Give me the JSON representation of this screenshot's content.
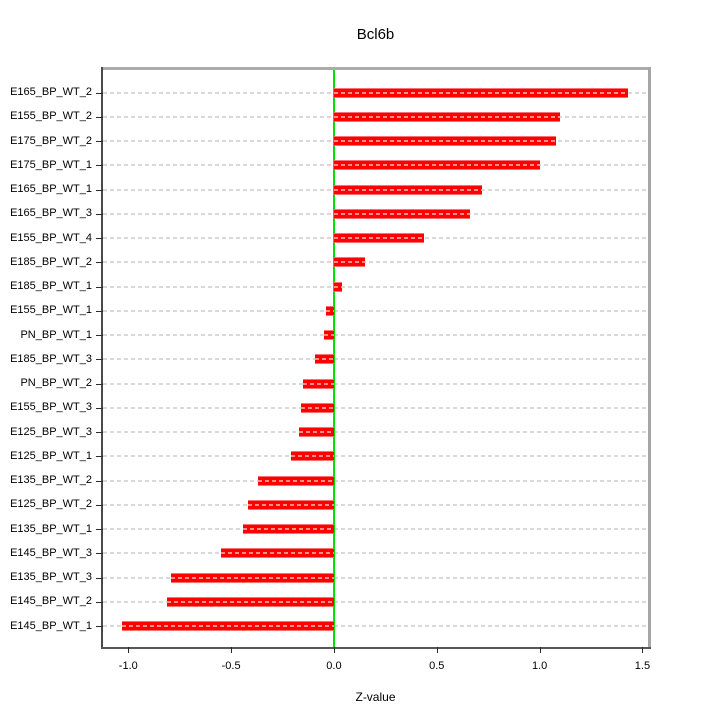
{
  "chart": {
    "title": "Bcl6b",
    "xlabel": "Z-value"
  },
  "chart_data": {
    "type": "bar",
    "orientation": "horizontal",
    "title": "Bcl6b",
    "xlabel": "Z-value",
    "ylabel": "",
    "categories": [
      "E165_BP_WT_2",
      "E155_BP_WT_2",
      "E175_BP_WT_2",
      "E175_BP_WT_1",
      "E165_BP_WT_1",
      "E165_BP_WT_3",
      "E155_BP_WT_4",
      "E185_BP_WT_2",
      "E185_BP_WT_1",
      "E155_BP_WT_1",
      "PN_BP_WT_1",
      "E185_BP_WT_3",
      "PN_BP_WT_2",
      "E155_BP_WT_3",
      "E125_BP_WT_3",
      "E125_BP_WT_1",
      "E135_BP_WT_2",
      "E125_BP_WT_2",
      "E135_BP_WT_1",
      "E145_BP_WT_3",
      "E135_BP_WT_3",
      "E145_BP_WT_2",
      "E145_BP_WT_1"
    ],
    "values": [
      1.43,
      1.1,
      1.08,
      1.0,
      0.72,
      0.66,
      0.44,
      0.15,
      0.04,
      -0.04,
      -0.05,
      -0.09,
      -0.15,
      -0.16,
      -0.17,
      -0.21,
      -0.37,
      -0.42,
      -0.44,
      -0.55,
      -0.79,
      -0.81,
      -1.03
    ],
    "xlim": [
      -1.123,
      1.527
    ],
    "xticks": [
      -1.0,
      -0.5,
      0.0,
      0.5,
      1.0,
      1.5
    ],
    "xtick_labels": [
      "-1.0",
      "-0.5",
      "0.0",
      "0.5",
      "1.0",
      "1.5"
    ],
    "zero_line": 0.0,
    "grid": "horizontal-dashed-per-category",
    "legend": "none",
    "colors": {
      "bar": "#fe0000",
      "bar_dash": "rgba(255,255,255,0.55)",
      "gridline": "#d9d9d9",
      "zero_line": "#00e100",
      "axis_box_light": "#ababab",
      "axis_box_dark": "#4a4a4a",
      "tick": "#2b2b2b",
      "text": "#000000",
      "background": "#ffffff"
    }
  }
}
